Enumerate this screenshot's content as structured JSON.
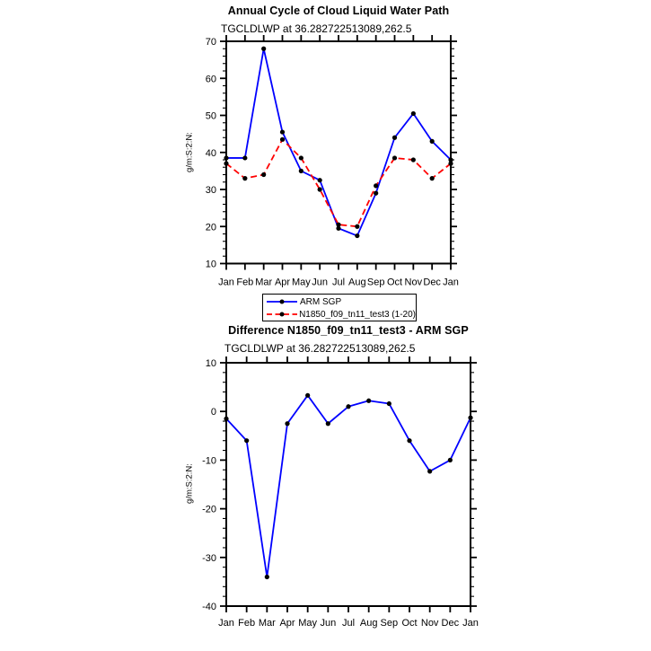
{
  "chart_data": [
    {
      "type": "line",
      "title": "Annual Cycle of Cloud Liquid Water Path",
      "subtitle": "TGCLDLWP at 36.282722513089,262.5",
      "ylabel": "g/m:S:2:N:",
      "xlabel": "",
      "categories": [
        "Jan",
        "Feb",
        "Mar",
        "Apr",
        "May",
        "Jun",
        "Jul",
        "Aug",
        "Sep",
        "Oct",
        "Nov",
        "Dec",
        "Jan"
      ],
      "ylim": [
        10,
        70
      ],
      "ytick_step": 10,
      "yminor_step": 2,
      "grid": false,
      "legend_position": "below-plot-left",
      "series": [
        {
          "name": "ARM SGP",
          "color": "#0000ff",
          "line_style": "solid",
          "marker": "circle",
          "marker_color": "#000000",
          "values": [
            38.5,
            38.5,
            68,
            45.5,
            35,
            32.5,
            19.5,
            17.5,
            29,
            44,
            50.5,
            43,
            38
          ]
        },
        {
          "name": "N1850_f09_tn11_test3 (1-20)",
          "color": "#ff0000",
          "line_style": "dashed",
          "marker": "circle",
          "marker_color": "#000000",
          "values": [
            37,
            33,
            34,
            43.5,
            38.5,
            30,
            20.5,
            20,
            31,
            38.5,
            38,
            33,
            37
          ]
        }
      ]
    },
    {
      "type": "line",
      "title": "Difference N1850_f09_tn11_test3 - ARM SGP",
      "subtitle": "TGCLDLWP at 36.282722513089,262.5",
      "ylabel": "g/m:S:2:N:",
      "xlabel": "",
      "categories": [
        "Jan",
        "Feb",
        "Mar",
        "Apr",
        "May",
        "Jun",
        "Jul",
        "Aug",
        "Sep",
        "Oct",
        "Nov",
        "Dec",
        "Jan"
      ],
      "ylim": [
        -40,
        10
      ],
      "ytick_step": 10,
      "yminor_step": 2,
      "grid": false,
      "legend_position": "none",
      "series": [
        {
          "name": "Difference",
          "color": "#0000ff",
          "line_style": "solid",
          "marker": "circle",
          "marker_color": "#000000",
          "values": [
            -1.5,
            -6,
            -34,
            -2.5,
            3.3,
            -2.5,
            1.0,
            2.2,
            1.6,
            -6,
            -12.3,
            -10,
            -1.3
          ]
        }
      ]
    }
  ],
  "colors": {
    "axis": "#000000",
    "background": "#ffffff"
  }
}
